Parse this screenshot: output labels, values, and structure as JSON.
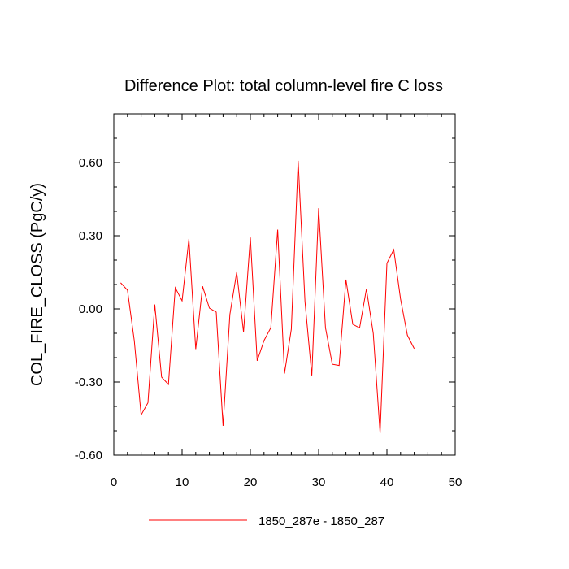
{
  "chart_data": {
    "type": "line",
    "title": "Difference Plot: total column-level fire C loss",
    "xlabel": "",
    "ylabel": "COL_FIRE_CLOSS  (PgC/y)",
    "xlim": [
      0,
      50
    ],
    "ylim": [
      -0.6,
      0.8
    ],
    "x_ticks": [
      0,
      10,
      20,
      30,
      40,
      50
    ],
    "x_tick_labels": [
      "0",
      "10",
      "20",
      "30",
      "40",
      "50"
    ],
    "y_ticks": [
      -0.6,
      -0.3,
      0.0,
      0.3,
      0.6
    ],
    "y_tick_labels": [
      "-0.60",
      "-0.30",
      "0.00",
      "0.30",
      "0.60"
    ],
    "x_minor_step": 2,
    "y_minor_step": 0.1,
    "grid": false,
    "legend_position": "bottom-center",
    "series": [
      {
        "name": "1850_287e - 1850_287",
        "color": "#ff0000",
        "x": [
          1,
          2,
          3,
          4,
          5,
          6,
          7,
          8,
          9,
          10,
          11,
          12,
          13,
          14,
          15,
          16,
          17,
          18,
          19,
          20,
          21,
          22,
          23,
          24,
          25,
          26,
          27,
          28,
          29,
          30,
          31,
          32,
          33,
          34,
          35,
          36,
          37,
          38,
          39,
          40,
          41,
          42,
          43,
          44
        ],
        "values": [
          0.107,
          0.077,
          -0.13,
          -0.435,
          -0.385,
          0.018,
          -0.28,
          -0.31,
          0.087,
          0.033,
          0.287,
          -0.165,
          0.093,
          0.003,
          -0.013,
          -0.48,
          -0.023,
          0.15,
          -0.095,
          0.293,
          -0.213,
          -0.13,
          -0.077,
          0.325,
          -0.265,
          -0.083,
          0.607,
          0.03,
          -0.273,
          0.413,
          -0.077,
          -0.227,
          -0.232,
          0.12,
          -0.063,
          -0.078,
          0.082,
          -0.1,
          -0.51,
          0.187,
          0.243,
          0.04,
          -0.108,
          -0.163
        ]
      }
    ]
  }
}
